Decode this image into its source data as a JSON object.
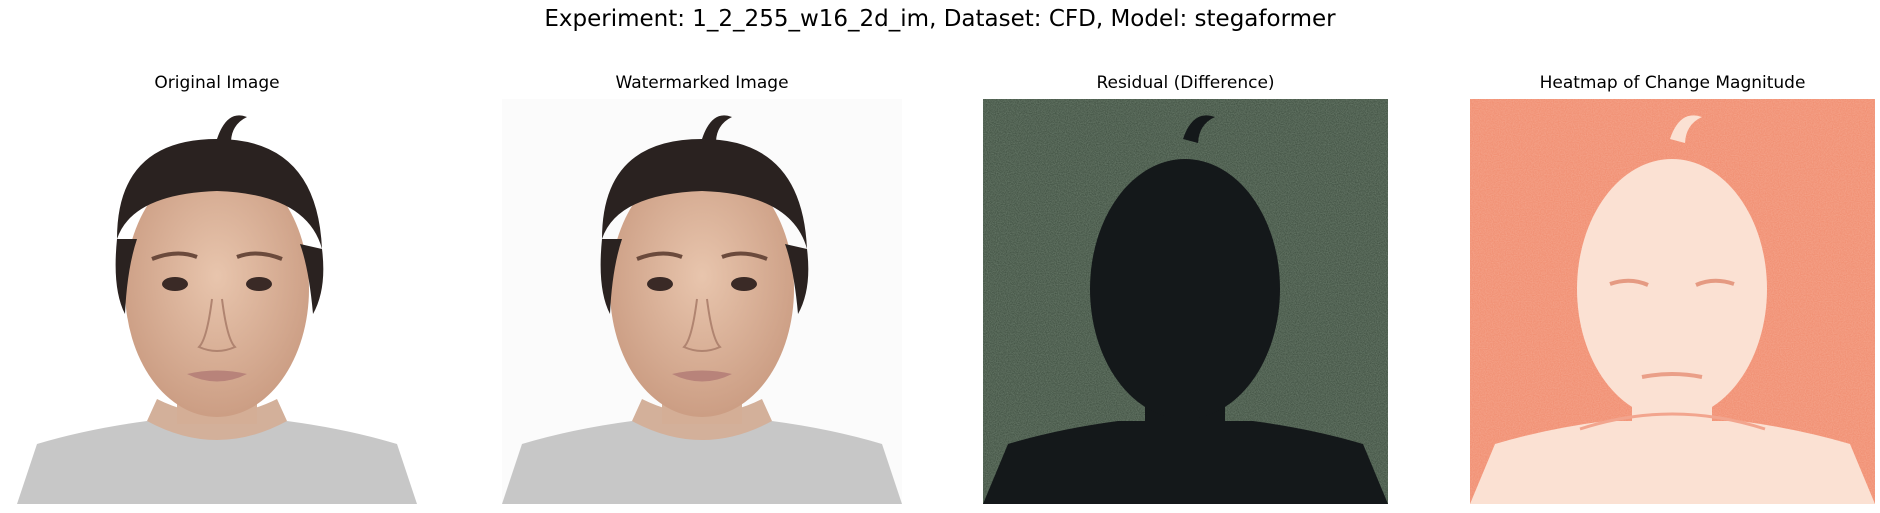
{
  "figure": {
    "suptitle": "Experiment: 1_2_255_w16_2d_im, Dataset: CFD, Model: stegaformer",
    "panels": [
      {
        "title": "Original Image"
      },
      {
        "title": "Watermarked Image"
      },
      {
        "title": "Residual (Difference)"
      },
      {
        "title": "Heatmap of Change Magnitude"
      }
    ]
  },
  "colors": {
    "photo_background": "#ffffff",
    "skin": "#e0b9a0",
    "hair": "#2a2220",
    "shirt": "#c7c7c7",
    "residual_background": "#3a4a3c",
    "residual_subject": "#14181a",
    "heatmap_background": "#f08a6c",
    "heatmap_subject": "#fbe1d3"
  },
  "icons": [
    "face-photo",
    "residual-noise-map",
    "heatmap"
  ]
}
